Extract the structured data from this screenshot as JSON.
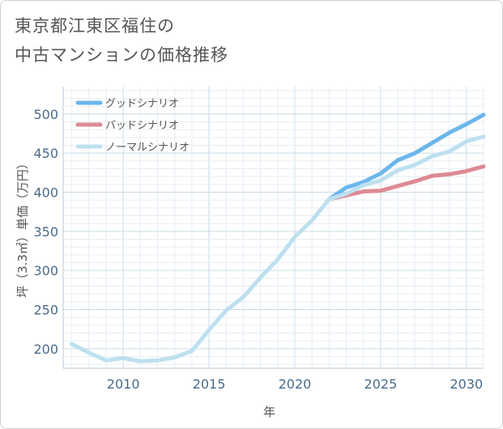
{
  "title": {
    "line1": "東京都江東区福住の",
    "line2": "中古マンションの価格推移"
  },
  "chart_data": {
    "type": "line",
    "xlabel": "年",
    "ylabel": "坪（3.3㎡）単価（万円）",
    "xlim": [
      2006.5,
      2031
    ],
    "ylim": [
      175,
      535
    ],
    "xticks": [
      2010,
      2015,
      2020,
      2025,
      2030
    ],
    "yticks": [
      200,
      250,
      300,
      350,
      400,
      450,
      500
    ],
    "grid": true,
    "legend_position": "top-left",
    "series": [
      {
        "name": "グッドシナリオ",
        "color": "#6bb6ec",
        "x": [
          2022,
          2023,
          2024,
          2025,
          2026,
          2027,
          2028,
          2029,
          2030,
          2031
        ],
        "y": [
          391,
          406,
          413,
          424,
          441,
          450,
          463,
          476,
          487,
          499
        ]
      },
      {
        "name": "バッドシナリオ",
        "color": "#de8a94",
        "x": [
          2022,
          2023,
          2024,
          2025,
          2026,
          2027,
          2028,
          2029,
          2030,
          2031
        ],
        "y": [
          391,
          396,
          401,
          402,
          408,
          414,
          421,
          423,
          427,
          433
        ]
      },
      {
        "name": "ノーマルシナリオ",
        "color": "#bde0ef",
        "x": [
          2007,
          2008,
          2009,
          2010,
          2011,
          2012,
          2013,
          2014,
          2015,
          2016,
          2017,
          2018,
          2019,
          2020,
          2021,
          2022,
          2023,
          2024,
          2025,
          2026,
          2027,
          2028,
          2029,
          2030,
          2031
        ],
        "y": [
          206,
          195,
          185,
          188,
          184,
          185,
          189,
          197,
          224,
          249,
          266,
          291,
          314,
          343,
          364,
          391,
          398,
          409,
          415,
          428,
          435,
          446,
          452,
          465,
          471
        ]
      }
    ]
  }
}
